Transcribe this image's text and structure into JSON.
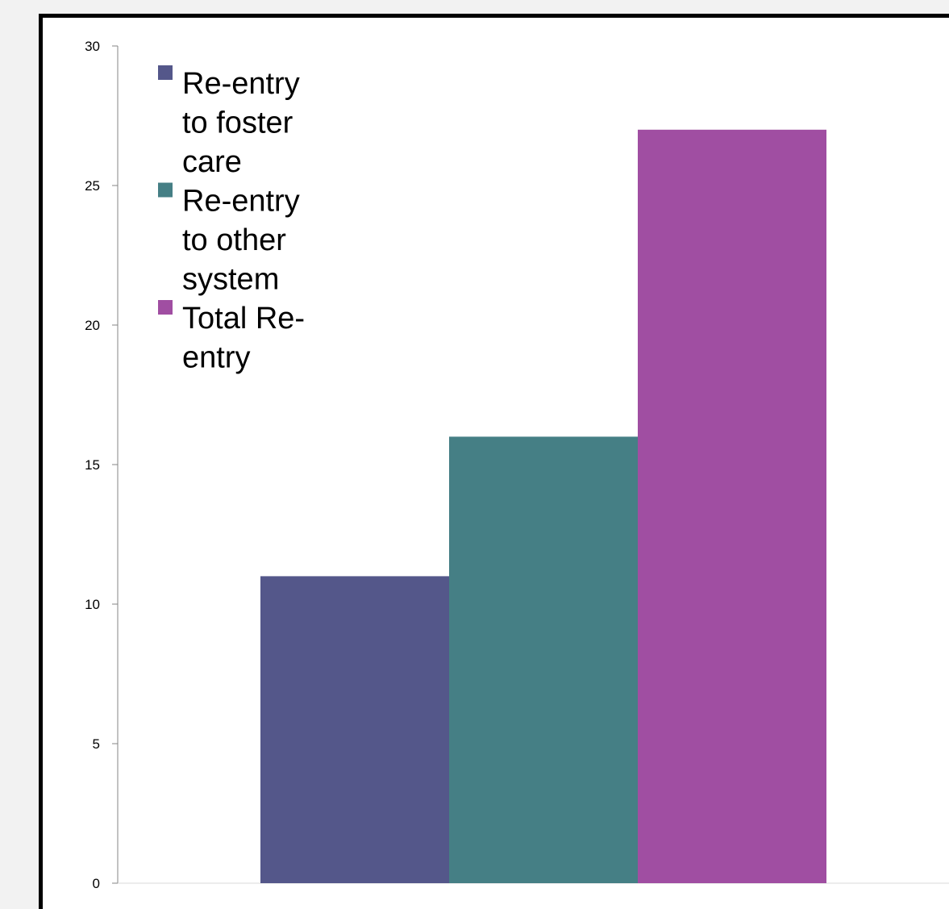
{
  "chart_data": {
    "type": "bar",
    "categories": [
      ""
    ],
    "series": [
      {
        "name": "Re-entry to foster care",
        "values": [
          11
        ],
        "color": "#54578a"
      },
      {
        "name": "Re-entry to other system",
        "values": [
          16
        ],
        "color": "#457f85"
      },
      {
        "name": "Total Re-entry",
        "values": [
          27
        ],
        "color": "#a04ea2"
      }
    ],
    "legend_lines": [
      [
        "Re-entry",
        "to foster",
        "care"
      ],
      [
        "Re-entry",
        "to other",
        "system"
      ],
      [
        "Total Re-",
        "entry"
      ]
    ],
    "title": "",
    "xlabel": "",
    "ylabel": "",
    "ylim": [
      0,
      30
    ],
    "yticks": [
      0,
      5,
      10,
      15,
      20,
      25,
      30
    ],
    "grid": false,
    "legend_position": "top-left"
  }
}
